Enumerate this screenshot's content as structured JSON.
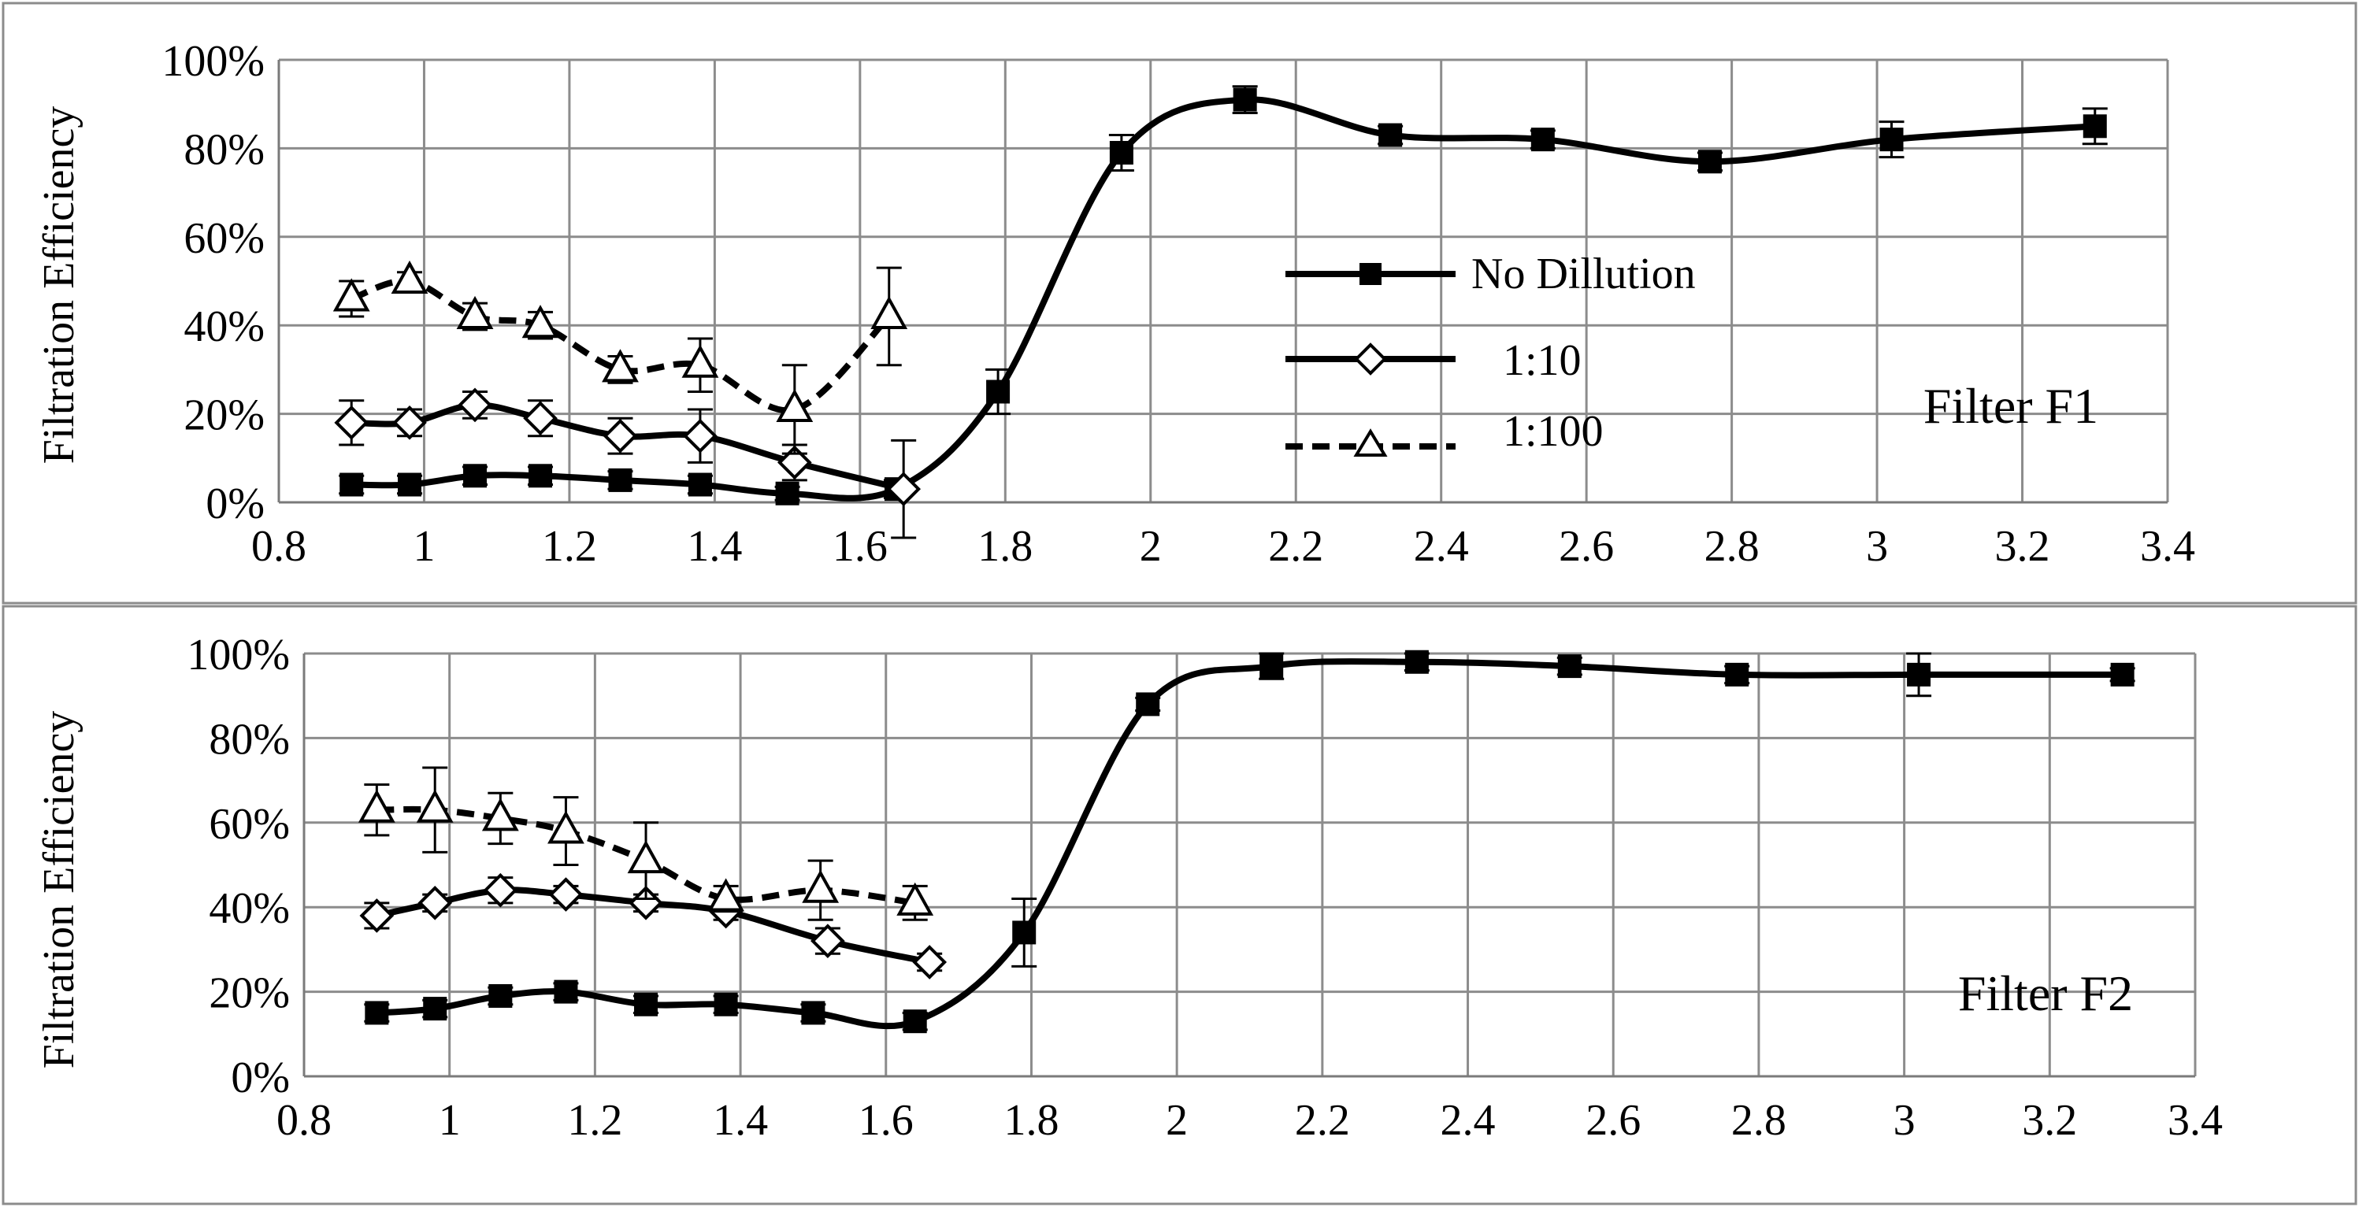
{
  "chart_data": [
    {
      "type": "line",
      "panel_label": "Filter F1",
      "ylabel": "Filtration Efficiency",
      "xlabel": "",
      "xlim": [
        0.8,
        3.4
      ],
      "ylim": [
        0,
        100
      ],
      "x_ticks": [
        "0.8",
        "1",
        "1.2",
        "1.4",
        "1.6",
        "1.8",
        "2",
        "2.2",
        "2.4",
        "2.6",
        "2.8",
        "3",
        "3.2",
        "3.4"
      ],
      "y_ticks": [
        "0%",
        "20%",
        "40%",
        "60%",
        "80%",
        "100%"
      ],
      "grid": true,
      "legend": {
        "position": "center-right",
        "entries": [
          "No Dillution",
          "1:10",
          "1:100"
        ]
      },
      "series": [
        {
          "name": "No Dillution",
          "marker": "square",
          "line": "solid",
          "x": [
            0.9,
            0.98,
            1.07,
            1.16,
            1.27,
            1.38,
            1.5,
            1.65,
            1.79,
            1.96,
            2.13,
            2.33,
            2.54,
            2.77,
            3.02,
            3.3
          ],
          "y": [
            4,
            4,
            6,
            6,
            5,
            4,
            2,
            3,
            25,
            79,
            91,
            83,
            82,
            77,
            82,
            85
          ],
          "err": [
            2,
            2,
            2,
            2,
            2,
            2,
            1.5,
            2,
            5,
            4,
            3,
            2,
            2,
            2,
            4,
            4
          ]
        },
        {
          "name": "1:10",
          "marker": "diamond",
          "line": "solid",
          "x": [
            0.9,
            0.98,
            1.07,
            1.16,
            1.27,
            1.38,
            1.51,
            1.66
          ],
          "y": [
            18,
            18,
            22,
            19,
            15,
            15,
            9,
            3
          ],
          "err": [
            5,
            3,
            3,
            4,
            4,
            6,
            4,
            11
          ]
        },
        {
          "name": "1:100",
          "marker": "triangle",
          "line": "dashed",
          "x": [
            0.9,
            0.98,
            1.07,
            1.16,
            1.27,
            1.38,
            1.51,
            1.64
          ],
          "y": [
            46,
            50,
            42,
            40,
            30,
            31,
            21,
            42
          ],
          "err": [
            4,
            2,
            3,
            3,
            3,
            6,
            10,
            11
          ]
        }
      ]
    },
    {
      "type": "line",
      "panel_label": "Filter F2",
      "ylabel": "Filtration Efficiency",
      "xlabel": "",
      "xlim": [
        0.8,
        3.4
      ],
      "ylim": [
        0,
        100
      ],
      "x_ticks": [
        "0.8",
        "1",
        "1.2",
        "1.4",
        "1.6",
        "1.8",
        "2",
        "2.2",
        "2.4",
        "2.6",
        "2.8",
        "3",
        "3.2",
        "3.4"
      ],
      "y_ticks": [
        "0%",
        "20%",
        "40%",
        "60%",
        "80%",
        "100%"
      ],
      "grid": true,
      "series": [
        {
          "name": "No Dillution",
          "marker": "square",
          "line": "solid",
          "x": [
            0.9,
            0.98,
            1.07,
            1.16,
            1.27,
            1.38,
            1.5,
            1.64,
            1.79,
            1.96,
            2.13,
            2.33,
            2.54,
            2.77,
            3.02,
            3.3
          ],
          "y": [
            15,
            16,
            19,
            20,
            17,
            17,
            15,
            13,
            34,
            88,
            97,
            98,
            97,
            95,
            95,
            95
          ],
          "err": [
            2,
            2,
            2,
            2,
            2,
            2,
            2,
            2,
            8,
            1.5,
            3,
            2,
            2,
            2,
            5,
            1.5
          ]
        },
        {
          "name": "1:10",
          "marker": "diamond",
          "line": "solid",
          "x": [
            0.9,
            0.98,
            1.07,
            1.16,
            1.27,
            1.38,
            1.52,
            1.66
          ],
          "y": [
            38,
            41,
            44,
            43,
            41,
            39,
            32,
            27
          ],
          "err": [
            3,
            2,
            3,
            2,
            2,
            2,
            3,
            2
          ]
        },
        {
          "name": "1:100",
          "marker": "triangle",
          "line": "dashed",
          "x": [
            0.9,
            0.98,
            1.07,
            1.16,
            1.27,
            1.38,
            1.51,
            1.64
          ],
          "y": [
            63,
            63,
            61,
            58,
            51,
            42,
            44,
            41
          ],
          "err": [
            6,
            10,
            6,
            8,
            9,
            3,
            7,
            4
          ]
        }
      ]
    }
  ]
}
